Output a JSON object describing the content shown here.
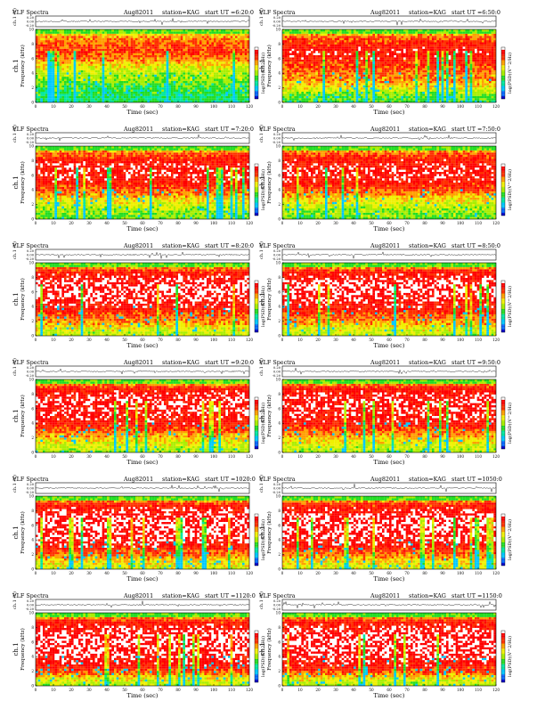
{
  "colors": {
    "spectrogram_palette": [
      "#0000c8",
      "#0064ff",
      "#00c8ff",
      "#00e6a0",
      "#22dd22",
      "#aaee00",
      "#f0f000",
      "#ffa000",
      "#ff3000",
      "#ff0000",
      "#ffffff"
    ],
    "waveform_line": "#333333",
    "axis": "#000000"
  },
  "figure": {
    "panels": [
      {
        "title_left": "VLF Spectra",
        "title_mid": "Aug82011",
        "title_station": "station=KAG",
        "title_time": "start  UT  =6:20:0",
        "profile": "A"
      },
      {
        "title_left": "VLF Spectra",
        "title_mid": "Aug82011",
        "title_station": "station=KAG",
        "title_time": "start  UT  =6:50:0",
        "profile": "B"
      },
      {
        "title_left": "VLF Spectra",
        "title_mid": "Aug82011",
        "title_station": "station=KAG",
        "title_time": "start  UT  =7:20:0",
        "profile": "C"
      },
      {
        "title_left": "VLF Spectra",
        "title_mid": "Aug82011",
        "title_station": "station=KAG",
        "title_time": "start  UT  =7:50:0",
        "profile": "C"
      },
      {
        "title_left": "VLF Spectra",
        "title_mid": "Aug82011",
        "title_station": "station=KAG",
        "title_time": "start  UT  =8:20:0",
        "profile": "D"
      },
      {
        "title_left": "VLF Spectra",
        "title_mid": "Aug82011",
        "title_station": "station=KAG",
        "title_time": "start  UT  =8:50:0",
        "profile": "D"
      },
      {
        "title_left": "VLF Spectra",
        "title_mid": "Aug82011",
        "title_station": "station=KAG",
        "title_time": "start  UT  =9:20:0",
        "profile": "E"
      },
      {
        "title_left": "VLF Spectra",
        "title_mid": "Aug82011",
        "title_station": "station=KAG",
        "title_time": "start  UT  =9:50:0",
        "profile": "E"
      },
      {
        "title_left": "VLF Spectra",
        "title_mid": "Aug82011",
        "title_station": "station=KAG",
        "title_time": "start  UT  =1020:0",
        "profile": "F"
      },
      {
        "title_left": "VLF Spectra",
        "title_mid": "Aug82011",
        "title_station": "station=KAG",
        "title_time": "start  UT  =1050:0",
        "profile": "F"
      },
      {
        "title_left": "VLF Spectra",
        "title_mid": "Aug82011",
        "title_station": "station=KAG",
        "title_time": "start  UT  =1120:0",
        "profile": "G"
      },
      {
        "title_left": "VLF Spectra",
        "title_mid": "Aug82011",
        "title_station": "station=KAG",
        "title_time": "start  UT  =1150:0",
        "profile": "G"
      }
    ]
  },
  "chart_data": {
    "type": "heatmap",
    "waveform": {
      "ylabel": "ch.1 (V)",
      "yticks": [
        "0.20",
        "0.00",
        "-0.20"
      ],
      "ylim": [
        -0.2,
        0.2
      ]
    },
    "spectrogram": {
      "xlabel": "Time  (sec)",
      "ylabel_channel": "ch.1",
      "ylabel": "Frequency  (kHz)",
      "xlim": [
        0,
        120
      ],
      "ylim": [
        0,
        10
      ],
      "xticks": [
        "0",
        "10",
        "20",
        "30",
        "40",
        "50",
        "60",
        "70",
        "80",
        "90",
        "100",
        "110",
        "120"
      ],
      "yticks": [
        "0",
        "2",
        "4",
        "6",
        "8",
        "10"
      ],
      "colorbar_label": "log(PSD)(V^2/Hz)",
      "intensity_profiles_by_freq_band": {
        "bands_kHz": [
          0,
          1,
          2,
          3,
          4,
          5,
          6,
          7,
          8,
          9,
          10
        ],
        "A": [
          0.34,
          0.36,
          0.4,
          0.46,
          0.52,
          0.6,
          0.74,
          0.82,
          0.78,
          0.7,
          0.48
        ],
        "B": [
          0.4,
          0.44,
          0.62,
          0.7,
          0.74,
          0.8,
          0.86,
          0.88,
          0.84,
          0.76,
          0.48
        ],
        "C": [
          0.44,
          0.48,
          0.56,
          0.66,
          0.78,
          0.86,
          0.9,
          0.9,
          0.86,
          0.78,
          0.48
        ],
        "D": [
          0.52,
          0.58,
          0.72,
          0.8,
          0.88,
          0.92,
          0.94,
          0.94,
          0.9,
          0.82,
          0.48
        ],
        "E": [
          0.5,
          0.56,
          0.66,
          0.78,
          0.86,
          0.9,
          0.92,
          0.92,
          0.9,
          0.82,
          0.48
        ],
        "F": [
          0.56,
          0.62,
          0.74,
          0.86,
          0.92,
          0.94,
          0.95,
          0.94,
          0.9,
          0.82,
          0.48
        ],
        "G": [
          0.5,
          0.6,
          0.8,
          0.88,
          0.92,
          0.94,
          0.95,
          0.94,
          0.9,
          0.82,
          0.48
        ]
      }
    }
  }
}
